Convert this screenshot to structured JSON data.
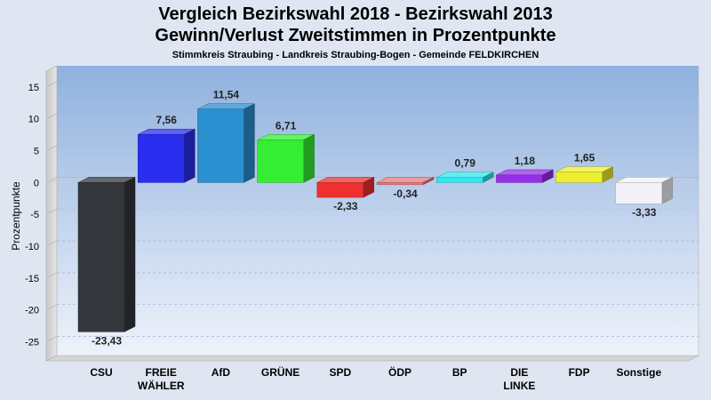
{
  "chart_data": {
    "type": "bar",
    "title": "Vergleich Bezirkswahl 2018 - Bezirkswahl 2013",
    "subtitle": "Gewinn/Verlust Zweitstimmen in Prozentpunkte",
    "subtitle2": "Stimmkreis Straubing - Landkreis Straubing-Bogen - Gemeinde FELDKIRCHEN",
    "ylabel": "Prozentpunkte",
    "ylim": [
      -28,
      17.5
    ],
    "yticks": [
      15,
      10,
      5,
      0,
      -5,
      -10,
      -15,
      -20,
      -25
    ],
    "grid": true,
    "categories": [
      [
        "CSU"
      ],
      [
        "FREIE",
        "WÄHLER"
      ],
      [
        "AfD"
      ],
      [
        "GRÜNE"
      ],
      [
        "SPD"
      ],
      [
        "ÖDP"
      ],
      [
        "BP"
      ],
      [
        "DIE",
        "LINKE"
      ],
      [
        "FDP"
      ],
      [
        "Sonstige"
      ]
    ],
    "values": [
      -23.43,
      7.56,
      11.54,
      6.71,
      -2.33,
      -0.34,
      0.79,
      1.18,
      1.65,
      -3.33
    ],
    "value_labels": [
      "-23,43",
      "7,56",
      "11,54",
      "6,71",
      "-2,33",
      "-0,34",
      "0,79",
      "1,18",
      "1,65",
      "-3,33"
    ],
    "colors": [
      "#33363b",
      "#2a2eee",
      "#2a90cf",
      "#33ee33",
      "#ee3030",
      "#e47a7a",
      "#30e8ee",
      "#9530e8",
      "#eeee30",
      "#f2f2f8"
    ]
  }
}
